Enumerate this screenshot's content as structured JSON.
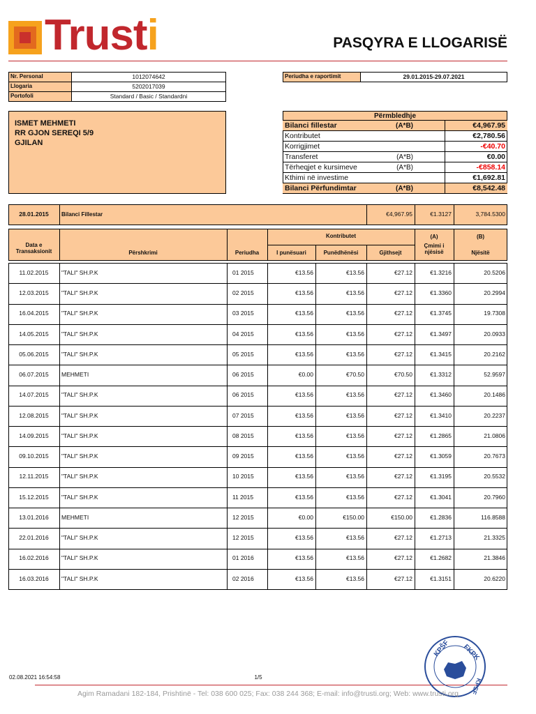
{
  "logo": {
    "main": "Trust",
    "accent": "i"
  },
  "title": "PASQYRA E LLOGARISË",
  "account": [
    {
      "label": "Nr. Personal",
      "value": "1012074642"
    },
    {
      "label": "Llogaria",
      "value": "5202017039"
    },
    {
      "label": "Portofoli",
      "value": "Standard / Basic / Standardni"
    }
  ],
  "period": {
    "label": "Periudha e raportimit",
    "value": "29.01.2015-29.07.2021"
  },
  "address": [
    "ISMET MEHMETI",
    "RR GJON SEREQI 5/9",
    "GJILAN"
  ],
  "summary": {
    "title": "Përmbledhje",
    "rows": [
      {
        "label": "Bilanci fillestar",
        "note": "(A*B)",
        "value": "€4,967.95",
        "bold": true
      },
      {
        "label": "Kontributet",
        "value": "€2,780.56"
      },
      {
        "label": "Korrigjimet",
        "value": "-€40.70",
        "negative": true
      },
      {
        "label": "Transferet",
        "note": "(A*B)",
        "value": "€0.00"
      },
      {
        "label": "Tërheqjet e kursimeve",
        "note": "(A*B)",
        "value": "-€858.14",
        "negative": true
      },
      {
        "label": "Kthimi në investime",
        "value": "€1,692.81"
      },
      {
        "label": "Bilanci Përfundimtar",
        "note": "(A*B)",
        "value": "€8,542.48",
        "bold": true
      }
    ]
  },
  "opening": {
    "date": "28.01.2015",
    "label": "Bilanci Fillestar",
    "amount": "€4,967.95",
    "price": "€1.3127",
    "units": "3,784.5300"
  },
  "table": {
    "headers": {
      "date": "Data e Transaksionit",
      "description": "Përshkrimi",
      "period": "Periudha",
      "contributions": "Kontributet",
      "employee": "I punësuari",
      "employer": "Punëdhënësi",
      "total": "Gjithsejt",
      "a": "(A)",
      "price": "Çmimi i njësisë",
      "b": "(B)",
      "units": "Njësitë"
    },
    "rows": [
      [
        "11.02.2015",
        "\"TALI\" SH.P.K",
        "01 2015",
        "€13.56",
        "€13.56",
        "€27.12",
        "€1.3216",
        "20.5206"
      ],
      [
        "12.03.2015",
        "\"TALI\" SH.P.K",
        "02 2015",
        "€13.56",
        "€13.56",
        "€27.12",
        "€1.3360",
        "20.2994"
      ],
      [
        "16.04.2015",
        "\"TALI\" SH.P.K",
        "03 2015",
        "€13.56",
        "€13.56",
        "€27.12",
        "€1.3745",
        "19.7308"
      ],
      [
        "14.05.2015",
        "\"TALI\" SH.P.K",
        "04 2015",
        "€13.56",
        "€13.56",
        "€27.12",
        "€1.3497",
        "20.0933"
      ],
      [
        "05.06.2015",
        "\"TALI\" SH.P.K",
        "05 2015",
        "€13.56",
        "€13.56",
        "€27.12",
        "€1.3415",
        "20.2162"
      ],
      [
        "06.07.2015",
        "MEHMETI",
        "06 2015",
        "€0.00",
        "€70.50",
        "€70.50",
        "€1.3312",
        "52.9597"
      ],
      [
        "14.07.2015",
        "\"TALI\" SH.P.K",
        "06 2015",
        "€13.56",
        "€13.56",
        "€27.12",
        "€1.3460",
        "20.1486"
      ],
      [
        "12.08.2015",
        "\"TALI\" SH.P.K",
        "07 2015",
        "€13.56",
        "€13.56",
        "€27.12",
        "€1.3410",
        "20.2237"
      ],
      [
        "14.09.2015",
        "\"TALI\" SH.P.K",
        "08 2015",
        "€13.56",
        "€13.56",
        "€27.12",
        "€1.2865",
        "21.0806"
      ],
      [
        "09.10.2015",
        "\"TALI\" SH.P.K",
        "09 2015",
        "€13.56",
        "€13.56",
        "€27.12",
        "€1.3059",
        "20.7673"
      ],
      [
        "12.11.2015",
        "\"TALI\" SH.P.K",
        "10 2015",
        "€13.56",
        "€13.56",
        "€27.12",
        "€1.3195",
        "20.5532"
      ],
      [
        "15.12.2015",
        "\"TALI\" SH.P.K",
        "11 2015",
        "€13.56",
        "€13.56",
        "€27.12",
        "€1.3041",
        "20.7960"
      ],
      [
        "13.01.2016",
        "MEHMETI",
        "12 2015",
        "€0.00",
        "€150.00",
        "€150.00",
        "€1.2836",
        "116.8588"
      ],
      [
        "22.01.2016",
        "\"TALI\" SH.P.K",
        "12 2015",
        "€13.56",
        "€13.56",
        "€27.12",
        "€1.2713",
        "21.3325"
      ],
      [
        "16.02.2016",
        "\"TALI\" SH.P.K",
        "01 2016",
        "€13.56",
        "€13.56",
        "€27.12",
        "€1.2682",
        "21.3846"
      ],
      [
        "16.03.2016",
        "\"TALI\" SH.P.K",
        "02 2016",
        "€13.56",
        "€13.56",
        "€27.12",
        "€1.3151",
        "20.6220"
      ]
    ]
  },
  "footer": {
    "timestamp": "02.08.2021 16:54:58",
    "page": "1/5",
    "contact": "Agim Ramadani 182-184, Prishtinë - Tel: 038 600 025; Fax: 038 244 368; E-mail: info@trusti.org; Web: www.trusti.org"
  },
  "stamp": {
    "left": "KPŠF",
    "right": "FKPK",
    "bottom": "KPSF"
  }
}
